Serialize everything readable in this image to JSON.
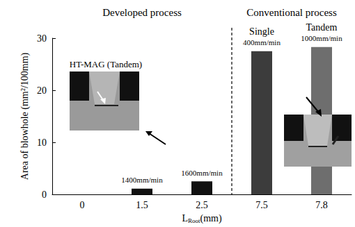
{
  "chart_data": {
    "type": "bar",
    "categories": [
      "0",
      "1.5",
      "2.5",
      "7.5",
      "7.8"
    ],
    "values": [
      0,
      1.1,
      2.5,
      27.5,
      28.3
    ],
    "colors": [
      "#111111",
      "#111111",
      "#111111",
      "#3c3c3c",
      "#6e6e6e"
    ],
    "bar_notes": [
      [],
      [
        "1400mm/min"
      ],
      [
        "1600mm/min"
      ],
      [
        "Single",
        "400mm/min"
      ],
      [
        "Tandem",
        "1000mm/min"
      ]
    ],
    "groups": [
      {
        "label": "Developed process",
        "categories": [
          "0",
          "1.5",
          "2.5"
        ]
      },
      {
        "label": "Conventional process",
        "categories": [
          "7.5",
          "7.8"
        ]
      }
    ],
    "annotations": [
      "HT-MAG (Tandem)"
    ],
    "ylabel": "Area of blowhole (mm²/100mm)",
    "xlabel": {
      "text": "L",
      "subscript": "Root",
      "suffix": "(mm)"
    },
    "ylim": [
      0,
      30
    ],
    "yticks": [
      0,
      10,
      20,
      30
    ],
    "grid": false
  }
}
